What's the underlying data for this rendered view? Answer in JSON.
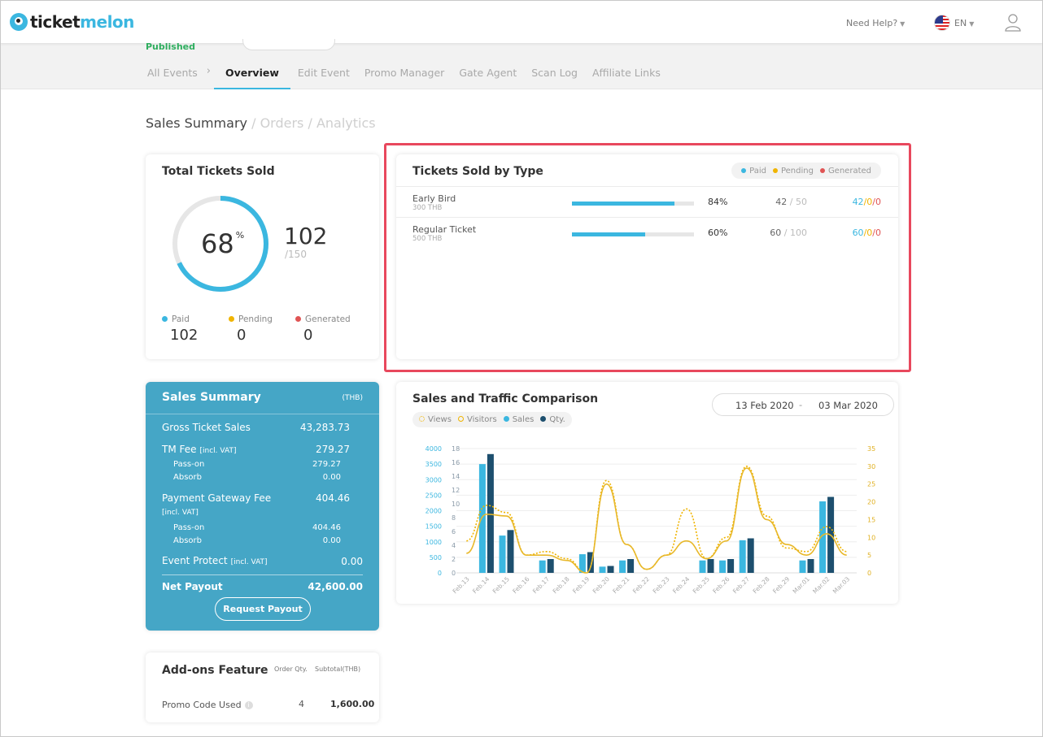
{
  "brand": {
    "part1": "ticket",
    "part2": "melon"
  },
  "header": {
    "need_help": "Need Help?",
    "lang": "EN"
  },
  "event": {
    "status": "Published"
  },
  "tabs": {
    "all_events": "All Events",
    "overview": "Overview",
    "edit_event": "Edit Event",
    "promo_manager": "Promo Manager",
    "gate_agent": "Gate Agent",
    "scan_log": "Scan Log",
    "affiliate_links": "Affiliate Links"
  },
  "section": {
    "active": "Sales Summary",
    "orders": "Orders",
    "analytics": "Analytics",
    "sep": "/"
  },
  "total_tickets": {
    "title": "Total Tickets Sold",
    "percent": 68,
    "percent_text": "68",
    "percent_sign": "%",
    "sold": "102",
    "capacity": "/150",
    "legend": [
      {
        "label": "Paid",
        "value": "102",
        "color": "#3bb7e0"
      },
      {
        "label": "Pending",
        "value": "0",
        "color": "#f0b400"
      },
      {
        "label": "Generated",
        "value": "0",
        "color": "#e05454"
      }
    ]
  },
  "tickets_by_type": {
    "title": "Tickets Sold by Type",
    "legend": [
      {
        "label": "Paid",
        "color": "#3bb7e0"
      },
      {
        "label": "Pending",
        "color": "#f0b400"
      },
      {
        "label": "Generated",
        "color": "#e05454"
      }
    ],
    "rows": [
      {
        "name": "Early Bird",
        "price": "300 THB",
        "fill": 0.84,
        "pct": "84%",
        "sold": "42",
        "total": " / 50",
        "paid": "42",
        "pending": "0",
        "generated": "0"
      },
      {
        "name": "Regular Ticket",
        "price": "500 THB",
        "fill": 0.6,
        "pct": "60%",
        "sold": "60",
        "total": " / 100",
        "paid": "60",
        "pending": "0",
        "generated": "0"
      }
    ],
    "slash": "/"
  },
  "sales_summary": {
    "title": "Sales Summary",
    "currency": "(THB)",
    "gross_label": "Gross Ticket Sales",
    "gross_value": "43,283.73",
    "tm_fee_label": "TM Fee",
    "tm_fee_note": "[incl. VAT]",
    "tm_fee_value": "279.27",
    "tm_pass_label": "Pass-on",
    "tm_pass_value": "279.27",
    "tm_absorb_label": "Absorb",
    "tm_absorb_value": "0.00",
    "pg_fee_label": "Payment Gateway Fee",
    "pg_fee_note": "[incl. VAT]",
    "pg_fee_value": "404.46",
    "pg_pass_label": "Pass-on",
    "pg_pass_value": "404.46",
    "pg_absorb_label": "Absorb",
    "pg_absorb_value": "0.00",
    "ep_label": "Event Protect",
    "ep_note": "[incl. VAT]",
    "ep_value": "0.00",
    "net_label": "Net Payout",
    "net_value": "42,600.00",
    "payout_button": "Request Payout"
  },
  "addons": {
    "title": "Add-ons Feature",
    "col_qty": "Order Qty.",
    "col_subtotal": "Subtotal(THB)",
    "row_name": "Promo Code Used",
    "row_qty": "4",
    "row_subtotal": "1,600.00"
  },
  "traffic": {
    "title": "Sales and Traffic Comparison",
    "legend": [
      {
        "label": "Views",
        "style": "ring-dotted",
        "color": "#f0b400"
      },
      {
        "label": "Visitors",
        "style": "ring",
        "color": "#f0b400"
      },
      {
        "label": "Sales",
        "style": "dot",
        "color": "#3bb7e0"
      },
      {
        "label": "Qty.",
        "style": "dot",
        "color": "#1d4f6e"
      }
    ],
    "date_from": "13 Feb 2020",
    "date_sep": "-",
    "date_to": "03 Mar 2020"
  },
  "chart_data": {
    "type": "bar",
    "categories": [
      "Feb.13",
      "Feb.14",
      "Feb.15",
      "Feb.16",
      "Feb.17",
      "Feb.18",
      "Feb.19",
      "Feb.20",
      "Feb.21",
      "Feb.22",
      "Feb.23",
      "Feb.24",
      "Feb.25",
      "Feb.26",
      "Feb.27",
      "Feb.28",
      "Feb.29",
      "Mar.01",
      "Mar.02",
      "Mar.03"
    ],
    "y_left_sales": {
      "ticks": [
        0,
        500,
        1000,
        1500,
        2000,
        2500,
        3000,
        3500,
        4000
      ],
      "color": "#3bb7e0"
    },
    "y_left_qty": {
      "ticks": [
        0,
        2,
        4,
        6,
        8,
        10,
        12,
        14,
        16,
        18
      ],
      "color": "#1d4f6e"
    },
    "y_right": {
      "ticks": [
        0,
        5,
        10,
        15,
        20,
        25,
        30,
        35
      ],
      "color": "#e0b020"
    },
    "series": [
      {
        "name": "Sales",
        "axis": "sales",
        "values": [
          0,
          3500,
          1200,
          0,
          400,
          0,
          600,
          200,
          400,
          0,
          0,
          0,
          400,
          400,
          1050,
          0,
          0,
          400,
          2300,
          0
        ]
      },
      {
        "name": "Qty.",
        "axis": "qty",
        "values": [
          0,
          17.2,
          6.2,
          0,
          2,
          0,
          3,
          1,
          2,
          0,
          0,
          0,
          2,
          2,
          5,
          0,
          0,
          2,
          11,
          0
        ]
      },
      {
        "name": "Views",
        "axis": "right",
        "values": [
          9,
          19,
          17,
          5,
          6,
          4,
          0,
          26,
          8,
          1,
          5,
          18,
          4,
          10,
          30,
          16,
          7,
          6,
          13,
          6
        ]
      },
      {
        "name": "Visitors",
        "axis": "right",
        "values": [
          5.5,
          16.5,
          16,
          5,
          5,
          3.5,
          0,
          25,
          8,
          1,
          5,
          9,
          4,
          9,
          29.5,
          15,
          8,
          5,
          11,
          5
        ]
      }
    ],
    "grid": true
  }
}
